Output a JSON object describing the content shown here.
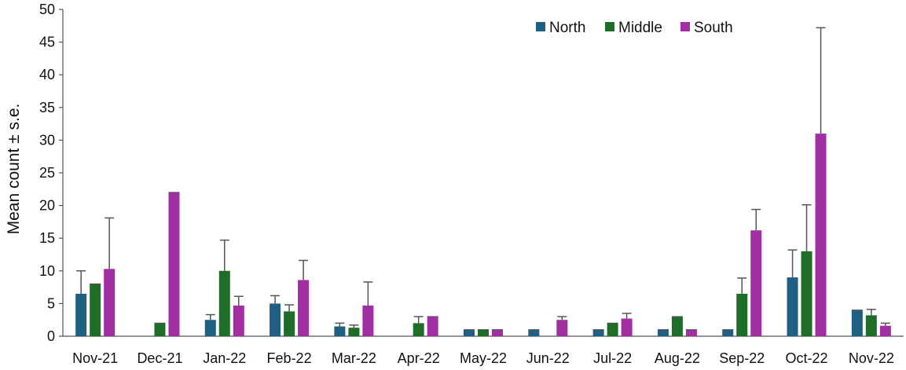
{
  "chart_data": {
    "type": "bar",
    "title": "",
    "xlabel": "",
    "ylabel": "Mean count  ± s.e.",
    "ylim": [
      0,
      50
    ],
    "yticks": [
      0,
      5,
      10,
      15,
      20,
      25,
      30,
      35,
      40,
      45,
      50
    ],
    "grid": false,
    "legend_position": "top-right",
    "categories": [
      "Nov-21",
      "Dec-21",
      "Jan-22",
      "Feb-22",
      "Mar-22",
      "Apr-22",
      "May-22",
      "Jun-22",
      "Jul-22",
      "Aug-22",
      "Sep-22",
      "Oct-22",
      "Nov-22"
    ],
    "series": [
      {
        "name": "North",
        "color": "#1f5f82",
        "values": [
          6.5,
          null,
          2.5,
          5.0,
          1.5,
          null,
          1.0,
          1.0,
          1.0,
          1.0,
          1.0,
          9.0,
          4.0
        ],
        "errors": [
          3.5,
          null,
          0.8,
          1.2,
          0.5,
          null,
          0,
          0,
          0,
          0,
          0,
          4.2,
          0
        ]
      },
      {
        "name": "Middle",
        "color": "#1e6e2a",
        "values": [
          8.0,
          2.0,
          10.0,
          3.8,
          1.3,
          2.0,
          1.0,
          null,
          2.0,
          3.0,
          6.5,
          13.0,
          3.2
        ],
        "errors": [
          0,
          0,
          4.7,
          1.0,
          0.4,
          1.0,
          0,
          null,
          0,
          0,
          2.4,
          7.1,
          0.9
        ]
      },
      {
        "name": "South",
        "color": "#a22fa2",
        "values": [
          10.3,
          22.0,
          4.7,
          8.6,
          4.7,
          3.0,
          1.0,
          2.5,
          2.7,
          1.0,
          16.2,
          31.0,
          1.6
        ],
        "errors": [
          7.8,
          0,
          1.4,
          3.0,
          3.6,
          0,
          0,
          0.5,
          0.8,
          0,
          3.2,
          16.2,
          0.4
        ]
      }
    ]
  }
}
